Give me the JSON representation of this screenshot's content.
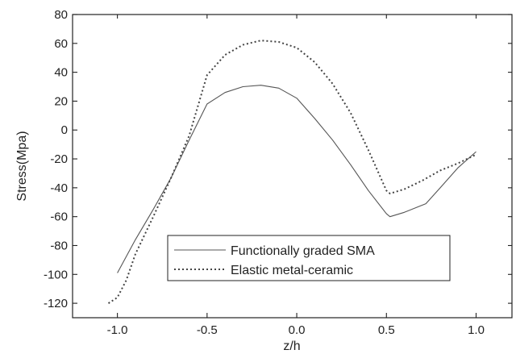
{
  "chart_data": {
    "type": "line",
    "title": "",
    "xlabel": "z/h",
    "ylabel": "Stress(Mpa)",
    "xlim": [
      -1.25,
      1.2
    ],
    "ylim": [
      -130,
      80
    ],
    "x_ticks": [
      -1.0,
      -0.5,
      0.0,
      0.5,
      1.0
    ],
    "x_tick_labels": [
      "-1.0",
      "-0.5",
      "0.0",
      "0.5",
      "1.0"
    ],
    "y_ticks": [
      80,
      60,
      40,
      20,
      0,
      -20,
      -40,
      -60,
      -80,
      -100,
      -120
    ],
    "y_tick_labels": [
      "80",
      "60",
      "40",
      "20",
      "0",
      "-20",
      "-40",
      "-60",
      "-80",
      "-100",
      "-120"
    ],
    "grid": false,
    "legend_position": "bottom-center",
    "series": [
      {
        "name": "Functionally graded SMA",
        "style": "solid",
        "color": "#555555",
        "x": [
          -1.0,
          -0.9,
          -0.8,
          -0.7,
          -0.6,
          -0.5,
          -0.4,
          -0.3,
          -0.2,
          -0.1,
          0.0,
          0.1,
          0.2,
          0.3,
          0.4,
          0.5,
          0.52,
          0.6,
          0.72,
          0.8,
          0.9,
          1.0
        ],
        "y": [
          -99,
          -76,
          -55,
          -33,
          -7,
          18,
          26,
          30,
          31,
          29,
          22,
          8,
          -7,
          -24,
          -42,
          -58,
          -60,
          -57,
          -51,
          -40,
          -26,
          -15
        ]
      },
      {
        "name": "Elastic metal-ceramic",
        "style": "dotted",
        "color": "#444444",
        "x": [
          -1.05,
          -1.0,
          -0.95,
          -0.9,
          -0.8,
          -0.7,
          -0.6,
          -0.5,
          -0.4,
          -0.3,
          -0.2,
          -0.1,
          0.0,
          0.1,
          0.2,
          0.3,
          0.4,
          0.5,
          0.52,
          0.6,
          0.7,
          0.8,
          0.9,
          1.0
        ],
        "y": [
          -120,
          -116,
          -104,
          -86,
          -60,
          -33,
          -4,
          38,
          52,
          59,
          62,
          61,
          57,
          47,
          32,
          12,
          -14,
          -42,
          -44,
          -41,
          -35,
          -28,
          -23,
          -17
        ]
      }
    ]
  }
}
